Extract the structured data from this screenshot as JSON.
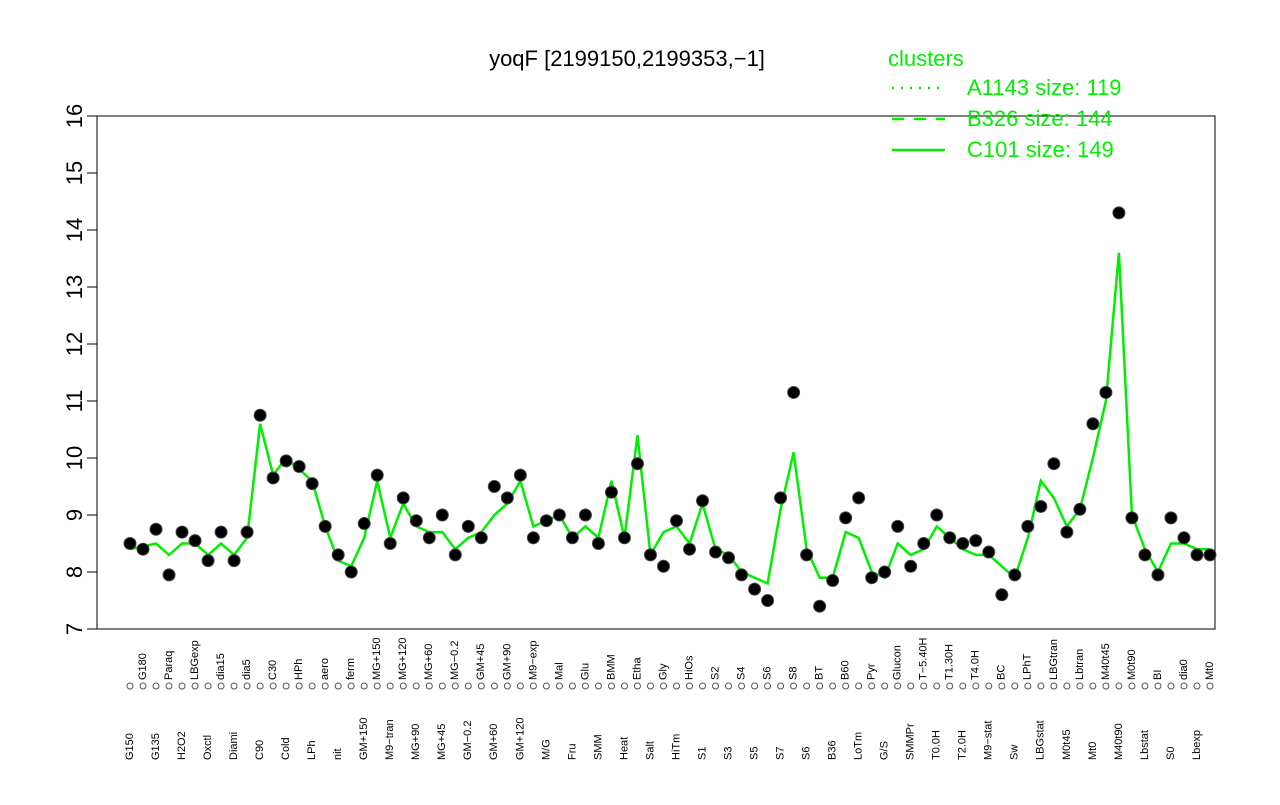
{
  "chart_data": {
    "type": "line",
    "title": "yoqF [2199150,2199353,−1]",
    "ylim": [
      7,
      16
    ],
    "yticks": [
      7,
      8,
      9,
      10,
      11,
      12,
      13,
      14,
      15,
      16
    ],
    "categories": [
      "G150",
      "G180",
      "G135",
      "Paraq",
      "H2O2",
      "LBGexp",
      "Oxctl",
      "dia15",
      "Diami",
      "dia5",
      "C90",
      "C30",
      "Cold",
      "HPh",
      "LPh",
      "aero",
      "nit",
      "ferm",
      "GM+150",
      "MG+150",
      "M9−tran",
      "MG+120",
      "MG+90",
      "MG+60",
      "MG+45",
      "MG−0.2",
      "GM−0.2",
      "GM+45",
      "GM+60",
      "GM+90",
      "GM+120",
      "M9−exp",
      "M/G",
      "Mal",
      "Fru",
      "Glu",
      "SMM",
      "BMM",
      "Heat",
      "Etha",
      "Salt",
      "Gly",
      "HiTm",
      "HiOs",
      "S1",
      "S2",
      "S3",
      "S4",
      "S5",
      "S6",
      "S7",
      "S8",
      "S6",
      "BT",
      "B36",
      "B60",
      "LoTm",
      "Pyr",
      "G/S",
      "Glucon",
      "SMMPr",
      "T−5.40H",
      "T0.0H",
      "T1.30H",
      "T2.0H",
      "T4.0H",
      "M9−stat",
      "BC",
      "Sw",
      "LPhT",
      "LBGstat",
      "LBGtran",
      "M0t45",
      "Lbtran",
      "Mt0",
      "M40t45",
      "M40t90",
      "M0t90",
      "Lbstat",
      "BI",
      "S0",
      "dia0",
      "Lbexp",
      "Mt0"
    ],
    "series": [
      {
        "name": "C101",
        "color": "#00ee00",
        "values": [
          8.4,
          8.45,
          8.5,
          8.3,
          8.5,
          8.5,
          8.3,
          8.5,
          8.3,
          8.6,
          10.6,
          9.7,
          10.0,
          9.8,
          9.6,
          8.8,
          8.2,
          8.1,
          8.6,
          9.6,
          8.6,
          9.2,
          8.8,
          8.7,
          8.7,
          8.4,
          8.6,
          8.7,
          9.0,
          9.2,
          9.6,
          8.8,
          8.9,
          9.0,
          8.6,
          8.8,
          8.6,
          9.6,
          8.6,
          10.4,
          8.3,
          8.7,
          8.8,
          8.5,
          9.2,
          8.4,
          8.3,
          8.0,
          7.9,
          7.8,
          9.1,
          10.1,
          8.4,
          7.9,
          7.9,
          8.7,
          8.6,
          8.0,
          7.9,
          8.5,
          8.3,
          8.4,
          8.8,
          8.6,
          8.4,
          8.3,
          8.3,
          8.1,
          7.9,
          8.6,
          9.6,
          9.3,
          8.8,
          9.1,
          10.0,
          11.0,
          13.6,
          9.0,
          8.4,
          8.0,
          8.5,
          8.5,
          8.4,
          8.4
        ]
      }
    ],
    "sample_color": "#000000",
    "sample_values": [
      8.5,
      8.4,
      8.75,
      7.95,
      8.7,
      8.55,
      8.2,
      8.7,
      8.2,
      8.7,
      10.75,
      9.65,
      9.95,
      9.85,
      9.55,
      8.8,
      8.3,
      8.0,
      8.85,
      9.7,
      8.5,
      9.3,
      8.9,
      8.6,
      9.0,
      8.3,
      8.8,
      8.6,
      9.5,
      9.3,
      9.7,
      8.6,
      8.9,
      9.0,
      8.6,
      9.0,
      8.5,
      9.4,
      8.6,
      9.9,
      8.3,
      8.1,
      8.9,
      8.4,
      9.25,
      8.35,
      8.25,
      7.95,
      7.7,
      7.5,
      9.3,
      11.15,
      8.3,
      7.4,
      7.85,
      8.95,
      9.3,
      7.9,
      8.0,
      8.8,
      8.1,
      8.5,
      9.0,
      8.6,
      8.5,
      8.55,
      8.35,
      7.6,
      7.95,
      8.8,
      9.15,
      9.9,
      8.7,
      9.1,
      10.6,
      11.15,
      14.3,
      8.95,
      8.3,
      7.95,
      8.95,
      8.6,
      8.3,
      8.3
    ],
    "legend": {
      "title": "clusters",
      "color": "#00ee00",
      "entries": [
        {
          "label": "A1143 size: 119",
          "dash": "2 7"
        },
        {
          "label": "B326 size: 144",
          "dash": "12 10"
        },
        {
          "label": "C101 size: 149",
          "dash": "none"
        }
      ]
    }
  }
}
